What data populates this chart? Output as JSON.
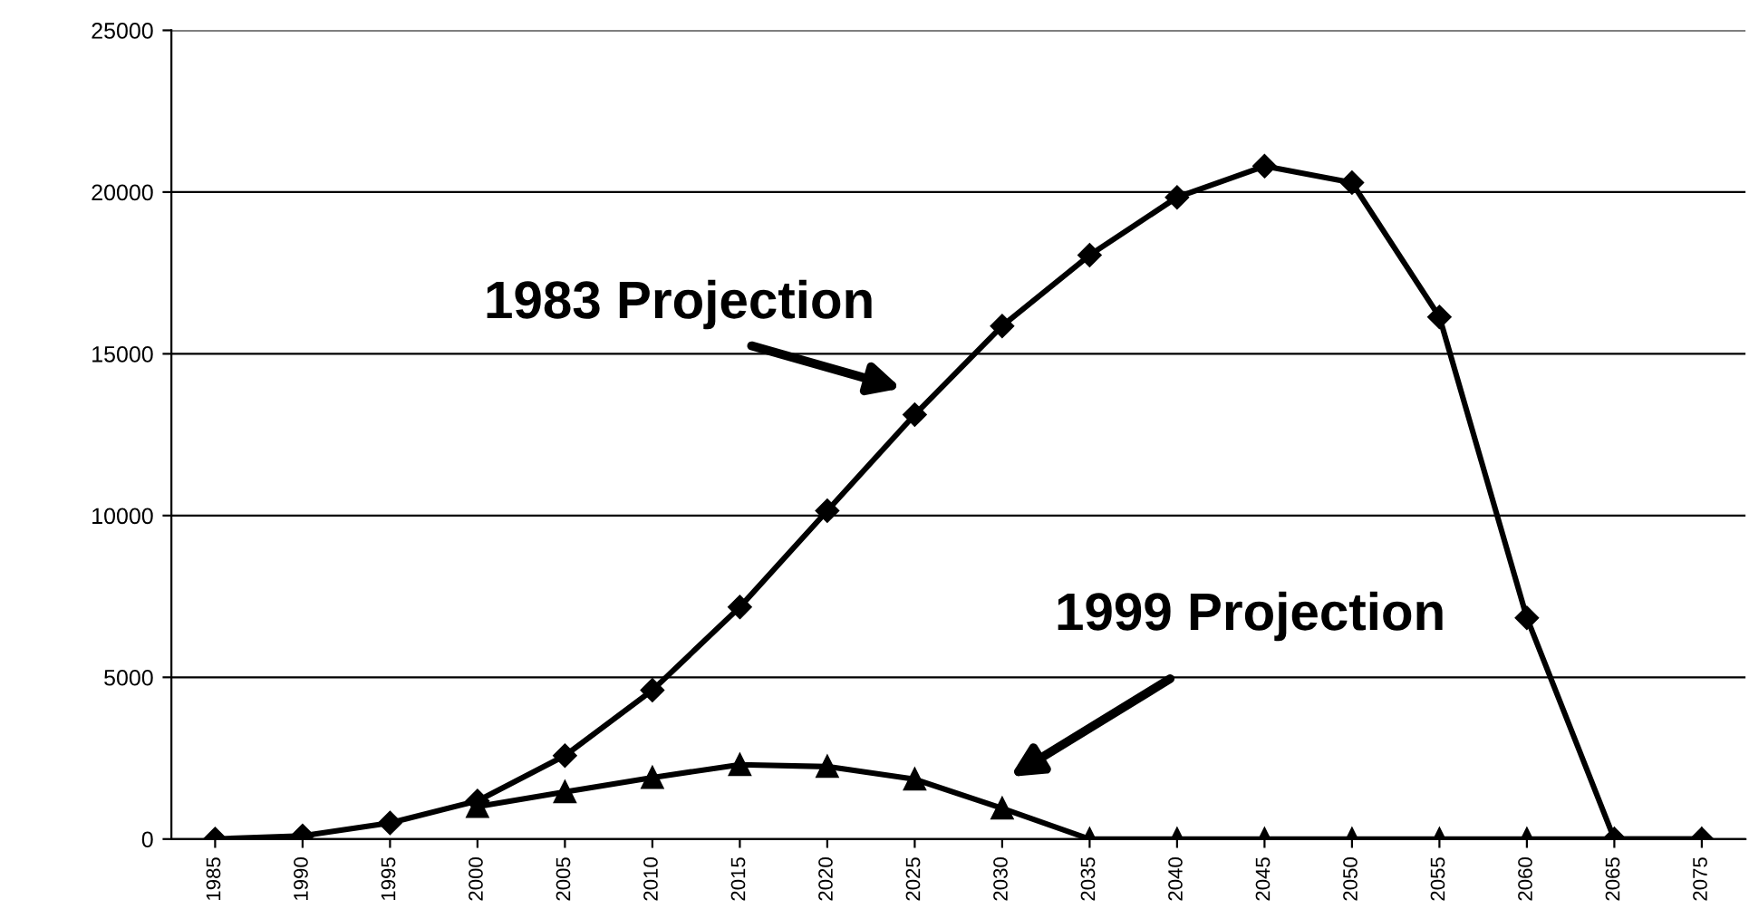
{
  "chart_data": {
    "type": "line",
    "categories": [
      "1985",
      "1990",
      "1995",
      "2000",
      "2005",
      "2010",
      "2015",
      "2020",
      "2025",
      "2030",
      "2035",
      "2040",
      "2045",
      "2050",
      "2055",
      "2060",
      "2065",
      "2075"
    ],
    "series": [
      {
        "color": "#000000",
        "marker": "diamond",
        "values": [
          0,
          100,
          500,
          1180,
          2580,
          4600,
          7170,
          10150,
          13120,
          15860,
          18050,
          19840,
          20800,
          20290,
          16140,
          6840,
          0,
          0
        ]
      },
      {
        "color": "#000000",
        "marker": "triangle",
        "values": [
          null,
          null,
          null,
          1000,
          1460,
          1900,
          2300,
          2240,
          1850,
          950,
          0,
          0,
          0,
          0,
          0,
          0,
          0,
          0
        ]
      }
    ],
    "ylim": [
      0,
      25000
    ],
    "yticks": [
      0,
      5000,
      10000,
      15000,
      20000,
      25000
    ],
    "grid": "y",
    "legend": false,
    "line_style": "solid",
    "annotations": [
      "1983 Projection",
      "1999 Projection"
    ]
  }
}
